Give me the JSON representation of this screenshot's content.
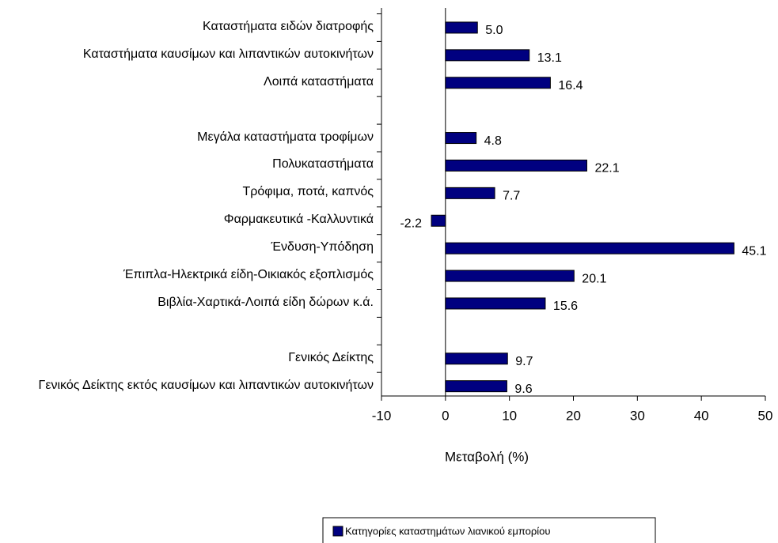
{
  "chart_data": {
    "type": "bar",
    "orientation": "horizontal",
    "categories": [
      "Καταστήματα ειδών διατροφής",
      "Καταστήματα καυσίμων και λιπαντικών αυτοκινήτων",
      "Λοιπά καταστήματα",
      null,
      "Μεγάλα καταστήματα τροφίμων",
      "Πολυκαταστήματα",
      "Τρόφιμα, ποτά, καπνός",
      "Φαρμακευτικά -Καλλυντικά",
      "Ένδυση-Υπόδηση",
      "Έπιπλα-Ηλεκτρικά είδη-Οικιακός εξοπλισμός",
      "Βιβλία-Χαρτικά-Λοιπά είδη δώρων κ.ά.",
      null,
      "Γενικός Δείκτης",
      "Γενικός Δείκτης εκτός καυσίμων και λιπαντικών αυτοκινήτων"
    ],
    "series": [
      {
        "name": "Κατηγορίες καταστημάτων λιανικού εμπορίου",
        "color": "#000080",
        "values": [
          5.0,
          13.1,
          16.4,
          null,
          4.8,
          22.1,
          7.7,
          -2.2,
          45.1,
          20.1,
          15.6,
          null,
          9.7,
          9.6
        ],
        "value_labels": [
          "5.0",
          "13.1",
          "16.4",
          null,
          "4.8",
          "22.1",
          "7.7",
          "-2.2",
          "45.1",
          "20.1",
          "15.6",
          null,
          "9.7",
          "9.6"
        ]
      }
    ],
    "xlabel": "Μεταβολή (%)",
    "xlim": [
      -10,
      50
    ],
    "xticks": [
      -10,
      0,
      10,
      20,
      30,
      40,
      50
    ],
    "legend": "bottom"
  }
}
